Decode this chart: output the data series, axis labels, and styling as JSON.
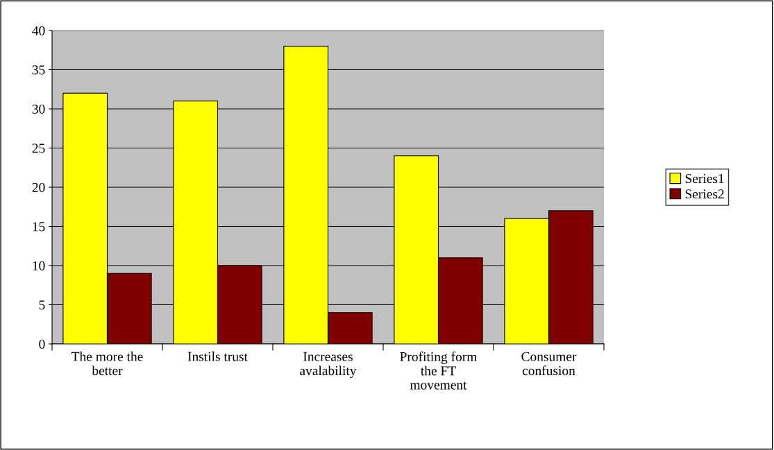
{
  "chart_data": {
    "type": "bar",
    "categories": [
      "The more the better",
      "Instils trust",
      "Increases avalability",
      "Profiting form the FT movement",
      "Consumer confusion"
    ],
    "series": [
      {
        "name": "Series1",
        "color": "#ffff00",
        "values": [
          32,
          31,
          38,
          24,
          16
        ]
      },
      {
        "name": "Series2",
        "color": "#800000",
        "values": [
          9,
          10,
          4,
          11,
          17
        ]
      }
    ],
    "ylim": [
      0,
      40
    ],
    "yticks": [
      0,
      5,
      10,
      15,
      20,
      25,
      30,
      35,
      40
    ],
    "grid": "y",
    "legend": "right"
  }
}
